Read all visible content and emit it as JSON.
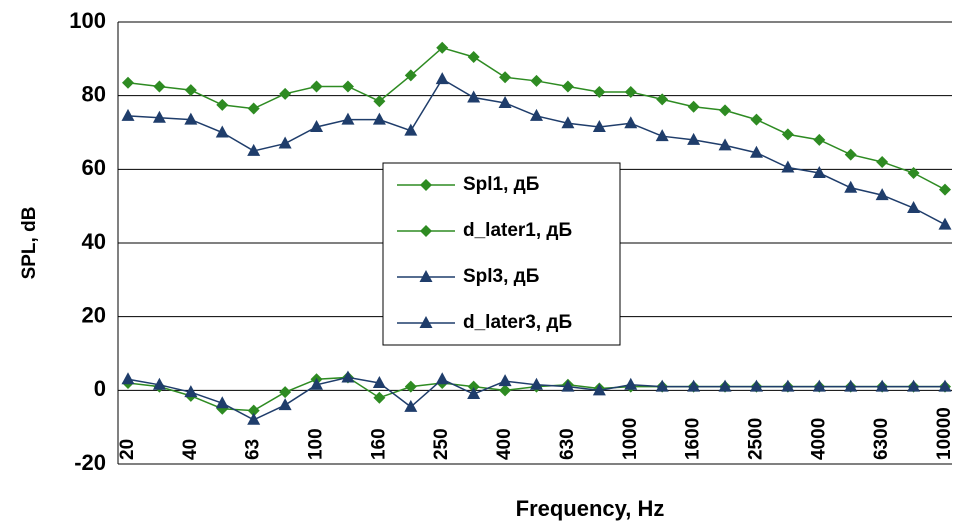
{
  "chart_data": {
    "type": "line",
    "x_label": "Frequency, Hz",
    "y_label": "SPL, dB",
    "categories": [
      "20",
      null,
      "40",
      null,
      "63",
      null,
      "100",
      null,
      "160",
      null,
      "250",
      null,
      "400",
      null,
      "630",
      null,
      "1000",
      null,
      "1600",
      null,
      "2500",
      null,
      "4000",
      null,
      "6300",
      null,
      "10000"
    ],
    "ylim": [
      -20,
      100
    ],
    "yticks": [
      -20,
      0,
      20,
      40,
      60,
      80,
      100
    ],
    "grid": true,
    "legend": "center",
    "series": [
      {
        "name": "Spl1, дБ",
        "color": "#2e8b22",
        "marker": "diamond",
        "values": [
          83.5,
          82.5,
          81.5,
          77.5,
          76.5,
          80.5,
          82.5,
          82.5,
          78.5,
          85.5,
          93,
          90.5,
          85,
          84,
          82.5,
          81,
          81,
          79,
          77,
          76,
          73.5,
          69.5,
          68,
          64,
          62,
          59,
          54.5
        ]
      },
      {
        "name": "d_later1, дБ",
        "color": "#2e8b22",
        "marker": "diamond",
        "values": [
          2,
          1,
          -1.5,
          -5,
          -5.5,
          -0.5,
          3,
          3.5,
          -2,
          1,
          2,
          1,
          0,
          1,
          1.5,
          0.5,
          1,
          1,
          1,
          1,
          1,
          1,
          1,
          1,
          1,
          1,
          1
        ]
      },
      {
        "name": "Spl3, дБ",
        "color": "#1f3d6b",
        "marker": "triangle",
        "values": [
          74.5,
          74,
          73.5,
          70,
          65,
          67,
          71.5,
          73.5,
          73.5,
          70.5,
          84.5,
          79.5,
          78,
          74.5,
          72.5,
          71.5,
          72.5,
          69,
          68,
          66.5,
          64.5,
          60.5,
          59,
          55,
          53,
          49.5,
          45
        ]
      },
      {
        "name": "d_later3, дБ",
        "color": "#1f3d6b",
        "marker": "triangle",
        "values": [
          3,
          1.5,
          -0.5,
          -3.5,
          -8,
          -4,
          1.5,
          3.5,
          2,
          -4.5,
          3,
          -1,
          2.5,
          1.5,
          1,
          0,
          1.5,
          1,
          1,
          1,
          1,
          1,
          1,
          1,
          1,
          1,
          1
        ]
      }
    ]
  }
}
